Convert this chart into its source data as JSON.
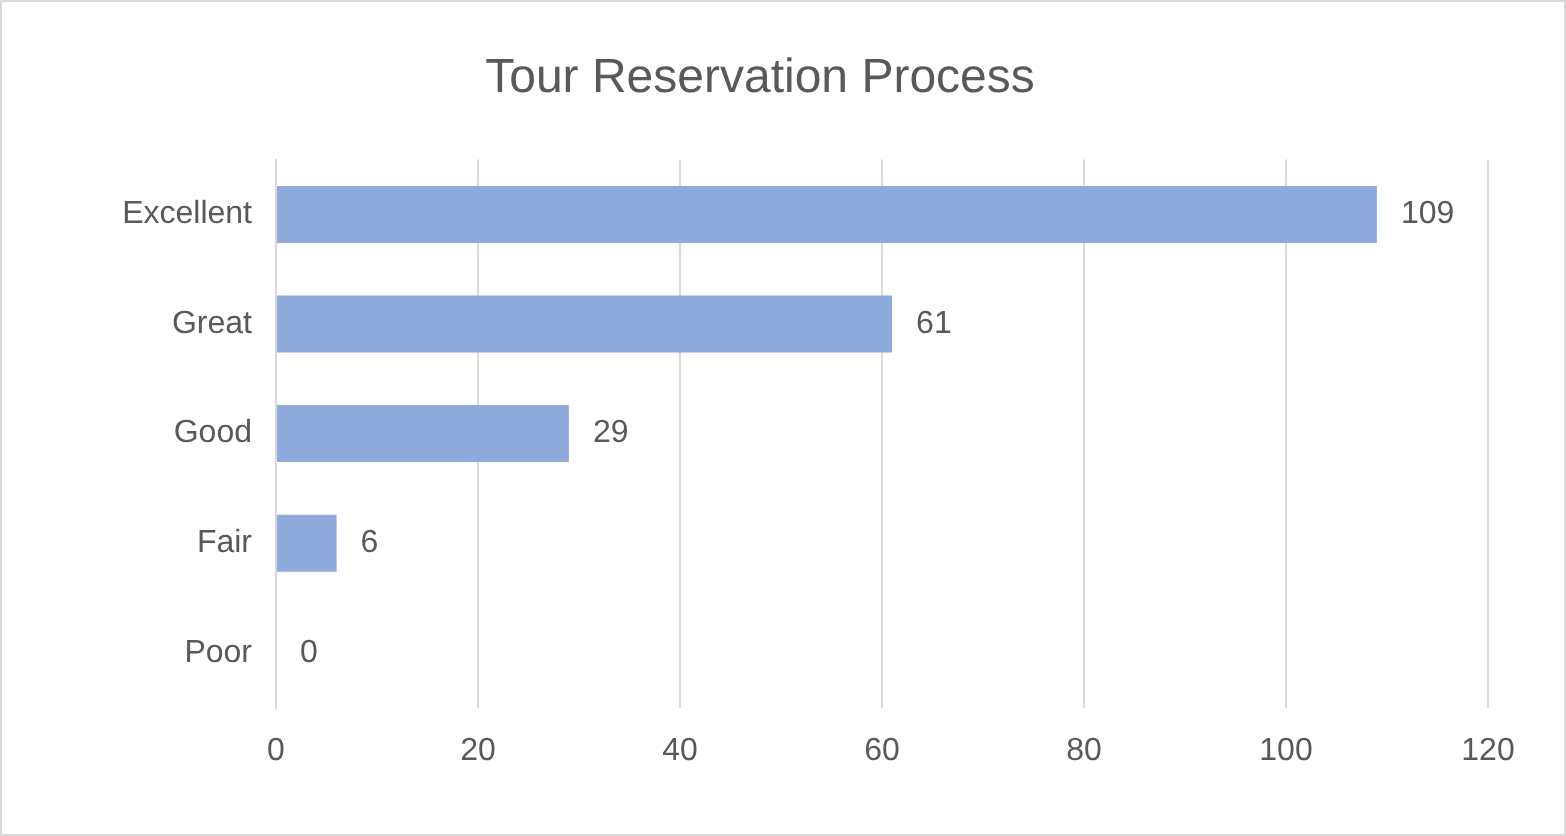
{
  "chart_data": {
    "type": "bar",
    "orientation": "horizontal",
    "title": "Tour Reservation Process",
    "categories": [
      "Excellent",
      "Great",
      "Good",
      "Fair",
      "Poor"
    ],
    "values": [
      109,
      61,
      29,
      6,
      0
    ],
    "color": "#8faadc",
    "xlim": [
      0,
      120
    ],
    "xticks": [
      0,
      20,
      40,
      60,
      80,
      100,
      120
    ],
    "grid": "x",
    "data_labels": true
  }
}
